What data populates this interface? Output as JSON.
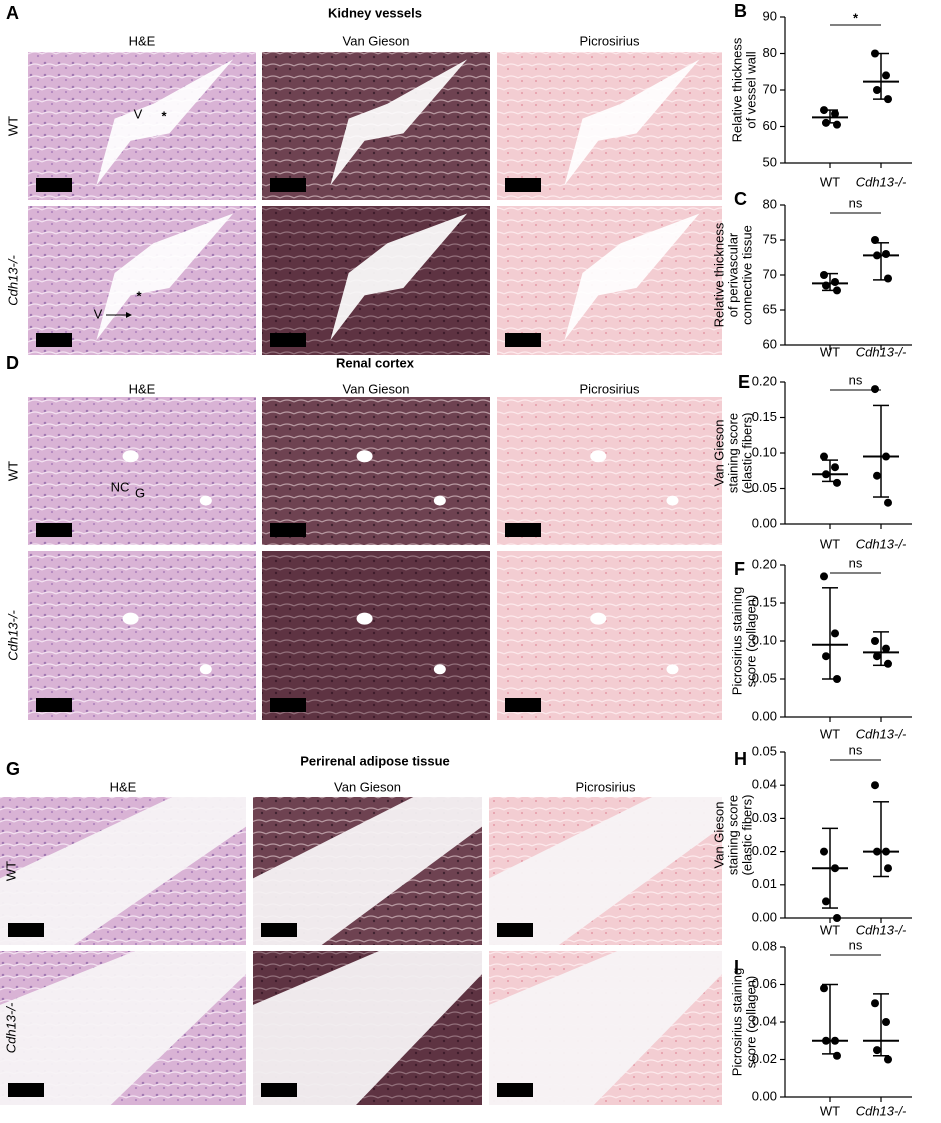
{
  "figure_panels": [
    {
      "letter": "A",
      "title": "Kidney vessels",
      "columns": [
        "H&E",
        "Van Gieson",
        "Picrosirius"
      ],
      "rows": [
        "WT",
        "Cdh13-/-"
      ],
      "annotations": [
        "V",
        "*",
        "V",
        "*"
      ]
    },
    {
      "letter": "D",
      "title": "Renal cortex",
      "columns": [
        "H&E",
        "Van Gieson",
        "Picrosirius"
      ],
      "rows": [
        "WT",
        "Cdh13-/-"
      ],
      "annotations": [
        "NC",
        "G"
      ]
    },
    {
      "letter": "G",
      "title": "Perirenal adipose tissue",
      "columns": [
        "H&E",
        "Van Gieson",
        "Picrosirius"
      ],
      "rows": [
        "WT",
        "Cdh13-/-"
      ]
    }
  ],
  "chart_data": [
    {
      "type": "dot",
      "letter": "B",
      "ylabel": [
        "Relative thickness",
        "of vessel wall"
      ],
      "categories": [
        "WT",
        "Cdh13-/-"
      ],
      "groups": [
        {
          "points": [
            64.5,
            63.5,
            61,
            60.5
          ],
          "center": 62.5,
          "lower": 61,
          "upper": 64.5
        },
        {
          "points": [
            80,
            74,
            70,
            67.5
          ],
          "center": 72.3,
          "lower": 67.5,
          "upper": 80
        }
      ],
      "significance": "*",
      "ylim": [
        50,
        90
      ],
      "yticks": [
        50,
        60,
        70,
        80,
        90
      ]
    },
    {
      "type": "dot",
      "letter": "C",
      "ylabel": [
        "Relative thickness",
        "of perivascular",
        "connective tissue"
      ],
      "categories": [
        "WT",
        "Cdh13-/-"
      ],
      "groups": [
        {
          "points": [
            70,
            69,
            68.5,
            67.8
          ],
          "center": 68.8,
          "lower": 67.8,
          "upper": 70.2
        },
        {
          "points": [
            75,
            73,
            72.8,
            69.5
          ],
          "center": 72.8,
          "lower": 69.3,
          "upper": 74.6
        }
      ],
      "significance": "ns",
      "ylim": [
        60,
        80
      ],
      "yticks": [
        60,
        65,
        70,
        75,
        80
      ]
    },
    {
      "type": "dot",
      "letter": "E",
      "ylabel": [
        "Van Gieson",
        "staining score",
        "(elastic fibers)"
      ],
      "categories": [
        "WT",
        "Cdh13-/-"
      ],
      "groups": [
        {
          "points": [
            0.095,
            0.08,
            0.07,
            0.058
          ],
          "center": 0.07,
          "lower": 0.06,
          "upper": 0.09
        },
        {
          "points": [
            0.19,
            0.095,
            0.068,
            0.03
          ],
          "center": 0.095,
          "lower": 0.038,
          "upper": 0.167
        }
      ],
      "significance": "ns",
      "ylim": [
        0,
        0.2
      ],
      "yticks": [
        {
          "value": 0,
          "label": "0.00"
        },
        {
          "value": 0.05,
          "label": "0.05"
        },
        {
          "value": 0.1,
          "label": "0.10"
        },
        {
          "value": 0.15,
          "label": "0.15"
        },
        {
          "value": 0.2,
          "label": "0.20"
        }
      ]
    },
    {
      "type": "dot",
      "letter": "F",
      "ylabel": [
        "Picrosirius staining",
        "score (collagen)"
      ],
      "categories": [
        "WT",
        "Cdh13-/-"
      ],
      "groups": [
        {
          "points": [
            0.185,
            0.11,
            0.08,
            0.05
          ],
          "center": 0.095,
          "lower": 0.05,
          "upper": 0.17
        },
        {
          "points": [
            0.1,
            0.09,
            0.08,
            0.07
          ],
          "center": 0.085,
          "lower": 0.068,
          "upper": 0.112
        }
      ],
      "significance": "ns",
      "ylim": [
        0,
        0.2
      ],
      "yticks": [
        {
          "value": 0,
          "label": "0.00"
        },
        {
          "value": 0.05,
          "label": "0.05"
        },
        {
          "value": 0.1,
          "label": "0.10"
        },
        {
          "value": 0.15,
          "label": "0.15"
        },
        {
          "value": 0.2,
          "label": "0.20"
        }
      ]
    },
    {
      "type": "dot",
      "letter": "H",
      "ylabel": [
        "Van Gieson",
        "staining score",
        "(elastic fibers)"
      ],
      "categories": [
        "WT",
        "Cdh13-/-"
      ],
      "groups": [
        {
          "points": [
            0.02,
            0.015,
            0.005,
            0
          ],
          "center": 0.015,
          "lower": 0.003,
          "upper": 0.027
        },
        {
          "points": [
            0.04,
            0.02,
            0.02,
            0.015
          ],
          "center": 0.02,
          "lower": 0.0125,
          "upper": 0.035
        }
      ],
      "significance": "ns",
      "ylim": [
        0,
        0.05
      ],
      "yticks": [
        {
          "value": 0,
          "label": "0.00"
        },
        {
          "value": 0.01,
          "label": "0.01"
        },
        {
          "value": 0.02,
          "label": "0.02"
        },
        {
          "value": 0.03,
          "label": "0.03"
        },
        {
          "value": 0.04,
          "label": "0.04"
        },
        {
          "value": 0.05,
          "label": "0.05"
        }
      ]
    },
    {
      "type": "dot",
      "letter": "I",
      "ylabel": [
        "Picrosirius staining",
        "score (collagen)"
      ],
      "categories": [
        "WT",
        "Cdh13-/-"
      ],
      "groups": [
        {
          "points": [
            0.058,
            0.03,
            0.03,
            0.022
          ],
          "center": 0.03,
          "lower": 0.023,
          "upper": 0.06
        },
        {
          "points": [
            0.05,
            0.04,
            0.025,
            0.02
          ],
          "center": 0.03,
          "lower": 0.022,
          "upper": 0.055
        }
      ],
      "significance": "ns",
      "ylim": [
        0,
        0.08
      ],
      "yticks": [
        {
          "value": 0,
          "label": "0.00"
        },
        {
          "value": 0.02,
          "label": "0.02"
        },
        {
          "value": 0.04,
          "label": "0.04"
        },
        {
          "value": 0.06,
          "label": "0.06"
        },
        {
          "value": 0.08,
          "label": "0.08"
        }
      ]
    }
  ]
}
